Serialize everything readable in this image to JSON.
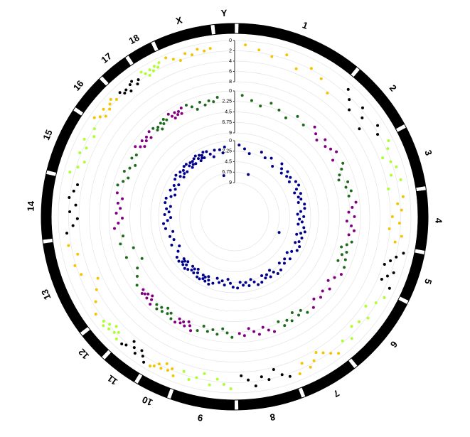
{
  "chart_data": {
    "type": "circular-manhattan",
    "categories": [
      "1",
      "2",
      "3",
      "4",
      "5",
      "6",
      "7",
      "8",
      "9",
      "10",
      "11",
      "12",
      "13",
      "14",
      "15",
      "16",
      "17",
      "18",
      "X",
      "Y"
    ],
    "chrom_lengths": [
      274,
      151,
      132,
      130,
      104,
      170,
      121,
      138,
      139,
      69,
      79,
      61,
      208,
      141,
      140,
      79,
      63,
      55,
      125,
      43
    ],
    "grid": true,
    "rings": [
      {
        "ylim": [
          0,
          8
        ],
        "yticks": [
          0,
          2,
          4,
          6,
          8
        ],
        "colors": [
          "#f5c400",
          "#000000",
          "#adff2f"
        ],
        "values": [
          [
            0.8,
            1.5,
            2.3,
            1.2,
            3.1,
            1.8,
            2.6,
            4.2
          ],
          [
            1.1,
            2.4,
            3.8,
            1.6,
            2.9,
            4.6,
            1.3,
            2.2
          ],
          [
            0.9,
            1.7,
            3.3,
            2.1,
            1.4,
            2.8,
            1.2,
            3.9
          ],
          [
            1.3,
            2.5,
            1.8,
            3.6,
            2.2,
            4.1,
            1.6,
            2.7
          ],
          [
            0.7,
            1.9,
            2.8,
            3.7,
            1.5,
            2.4,
            3.2,
            1.1
          ],
          [
            1.2,
            2.1,
            3.4,
            1.7,
            2.6,
            3.1,
            1.4,
            2.3
          ],
          [
            0.9,
            1.8,
            2.7,
            3.5,
            2.3,
            1.5,
            2.9,
            1.2
          ],
          [
            1.4,
            2.2,
            3.6,
            1.9,
            2.7,
            1.1,
            2.4,
            3.3
          ],
          [
            0.8,
            1.6,
            2.5,
            1.2,
            3.2,
            2.1,
            1.4,
            2.6
          ],
          [
            1.1,
            2.3,
            1.7,
            2.8,
            1.5,
            2.1,
            1.3,
            0.9
          ],
          [
            0.9,
            1.8,
            2.6,
            1.4,
            2.2,
            3.1,
            1.6,
            1.2
          ],
          [
            1.2,
            2.4,
            1.8,
            2.9,
            1.5,
            2.2,
            1.1,
            1.7
          ],
          [
            1.3,
            2.6,
            3.9,
            5.1,
            2.4,
            1.8,
            2.9,
            1.5
          ],
          [
            1.5,
            2.8,
            3.7,
            2.2,
            3.3,
            1.9,
            2.6,
            3.1
          ],
          [
            1.1,
            2.3,
            3.2,
            1.7,
            2.5,
            1.4,
            2.8,
            2.1
          ],
          [
            0.9,
            1.7,
            2.5,
            1.3,
            2.2,
            1.6,
            1.1,
            1.9
          ],
          [
            1.4,
            2.1,
            1.8,
            2.6,
            1.5,
            1.2,
            2.3,
            1.7
          ],
          [
            0.8,
            1.5,
            2.2,
            1.3,
            1.8,
            1.1,
            1.6,
            0.9
          ],
          [
            0.6,
            1.4,
            2.1,
            1.1,
            1.7,
            0.9,
            1.5,
            1.2
          ],
          []
        ]
      },
      {
        "ylim": [
          0,
          9
        ],
        "yticks": [
          0,
          2.25,
          4.5,
          6.75,
          9
        ],
        "colors": [
          "#1e6b1e",
          "#800080"
        ],
        "values": [
          [
            0.9,
            1.8,
            2.6,
            1.4,
            2.2,
            3.1,
            1.6,
            2.4
          ],
          [
            1.2,
            2.1,
            2.9,
            1.5,
            2.4,
            1.8,
            1.1,
            2.7
          ],
          [
            1.1,
            1.9,
            2.8,
            3.3,
            1.6,
            2.3,
            1.4,
            2.1
          ],
          [
            0.8,
            1.7,
            2.5,
            1.3,
            2.9,
            1.9,
            1.2,
            2.2
          ],
          [
            1.3,
            2.2,
            3.2,
            1.8,
            2.6,
            1.5,
            2.9,
            1.1
          ],
          [
            1.0,
            1.9,
            2.7,
            1.4,
            2.3,
            1.7,
            2.5,
            1.2
          ],
          [
            1.2,
            2.4,
            1.8,
            3.0,
            1.5,
            2.1,
            1.3,
            2.6
          ],
          [
            0.9,
            1.6,
            2.5,
            1.2,
            2.0,
            2.8,
            1.4,
            1.9
          ],
          [
            1.1,
            2.0,
            2.8,
            1.5,
            2.3,
            1.7,
            2.6,
            1.3
          ],
          [
            0.8,
            1.7,
            2.4,
            1.2,
            1.9,
            1.4,
            2.1,
            1.0
          ],
          [
            1.2,
            2.2,
            1.7,
            2.7,
            1.4,
            2.0,
            1.1,
            1.8
          ],
          [
            0.9,
            1.8,
            2.5,
            1.3,
            2.1,
            1.6,
            1.2,
            1.9
          ],
          [
            1.4,
            2.5,
            3.4,
            5.2,
            2.2,
            4.3,
            1.8,
            2.7
          ],
          [
            1.1,
            2.0,
            2.9,
            1.6,
            2.4,
            1.8,
            2.6,
            1.3
          ],
          [
            1.0,
            1.9,
            2.7,
            1.4,
            2.2,
            3.0,
            1.6,
            2.1
          ],
          [
            0.9,
            1.8,
            2.5,
            1.3,
            2.0,
            1.5,
            2.3,
            1.1
          ],
          [
            1.2,
            2.1,
            1.7,
            2.6,
            1.4,
            1.9,
            1.1,
            1.6
          ],
          [
            0.8,
            1.6,
            2.3,
            1.2,
            1.9,
            1.4,
            2.1,
            1.0
          ],
          [
            0.9,
            1.7,
            2.6,
            1.3,
            2.2,
            1.5,
            1.9,
            1.1
          ],
          []
        ]
      },
      {
        "ylim": [
          0,
          9
        ],
        "yticks": [
          0,
          2.25,
          4.5,
          6.75,
          9
        ],
        "colors": [
          "#00008b"
        ],
        "values": [
          [
            0.9,
            1.6,
            2.4,
            6.8,
            1.3,
            2.1,
            1.5,
            2.8
          ],
          [
            1.1,
            1.9,
            2.6,
            1.4,
            2.2,
            1.7,
            2.4,
            1.2
          ],
          [
            1.0,
            1.8,
            2.5,
            1.3,
            2.0,
            1.6,
            2.3,
            1.1
          ],
          [
            1.2,
            2.1,
            2.8,
            1.5,
            2.4,
            1.8,
            2.6,
            1.3
          ],
          [
            0.9,
            1.7,
            2.5,
            1.2,
            6.2,
            1.5,
            2.2,
            1.0
          ],
          [
            1.1,
            2.0,
            2.7,
            1.4,
            2.3,
            1.7,
            2.5,
            1.2
          ],
          [
            1.0,
            1.8,
            2.6,
            1.3,
            2.1,
            1.6,
            2.4,
            1.1
          ],
          [
            0.9,
            1.7,
            2.4,
            1.2,
            2.0,
            1.5,
            2.2,
            1.0
          ],
          [
            1.2,
            2.0,
            2.8,
            1.5,
            2.3,
            1.8,
            2.6,
            1.3
          ],
          [
            0.8,
            1.6,
            2.3,
            1.1,
            1.9,
            1.4,
            2.1,
            1.0
          ],
          [
            1.1,
            1.9,
            2.6,
            1.4,
            2.2,
            1.6,
            2.4,
            1.2
          ],
          [
            0.9,
            1.7,
            2.4,
            1.2,
            2.0,
            1.5,
            2.2,
            1.0
          ],
          [
            1.2,
            2.1,
            2.9,
            1.5,
            2.4,
            1.8,
            2.7,
            1.3
          ],
          [
            1.0,
            1.9,
            2.6,
            1.3,
            2.2,
            1.6,
            2.4,
            1.1
          ],
          [
            1.1,
            2.0,
            2.7,
            1.4,
            2.3,
            1.7,
            2.5,
            1.2
          ],
          [
            0.9,
            1.8,
            2.5,
            1.2,
            2.1,
            1.5,
            2.3,
            1.0
          ],
          [
            1.0,
            1.7,
            2.4,
            1.3,
            2.0,
            1.4,
            2.2,
            1.1
          ],
          [
            0.8,
            1.6,
            2.3,
            1.1,
            1.9,
            1.4,
            2.1,
            0.9
          ],
          [
            1.1,
            1.9,
            2.7,
            1.4,
            7.2,
            1.6,
            2.4,
            1.2
          ],
          []
        ]
      }
    ]
  }
}
